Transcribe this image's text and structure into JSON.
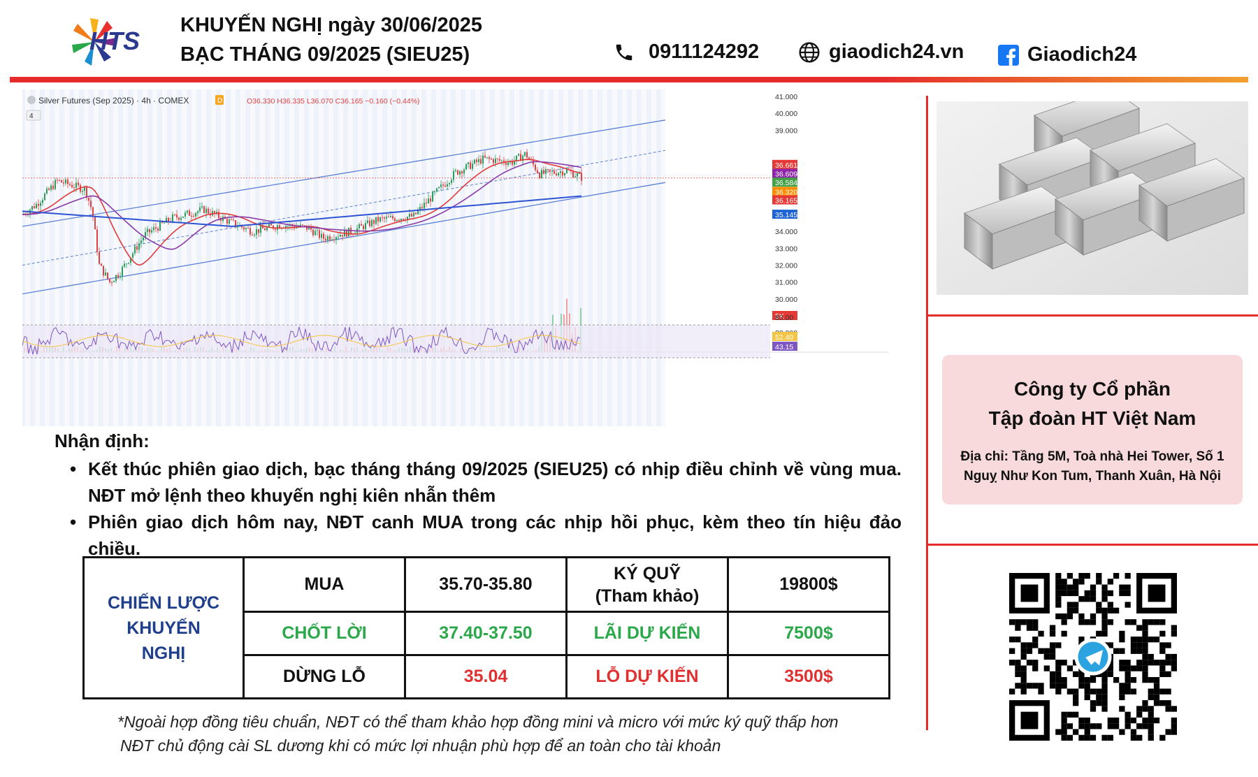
{
  "header": {
    "brand": "HTS",
    "title_line1": "KHUYẾN NGHỊ ngày 30/06/2025",
    "title_line2": "BẠC THÁNG 09/2025 (SIEU25)",
    "phone": "0911124292",
    "website": "giaodich24.vn",
    "facebook": "Giaodich24"
  },
  "chart": {
    "title": "Silver Futures (Sep 2025) · 4h · COMEX",
    "ohlc": "O36.330 H36.335 L36.070 C36.165 −0.160 (−0.44%)",
    "interval_badge": "4",
    "price_ticks": [
      "41.000",
      "40.000",
      "39.000",
      "36.661",
      "36.609",
      "36.584",
      "36.320",
      "36.165",
      "35.145",
      "34.000",
      "33.000",
      "32.000",
      "31.000",
      "30.000",
      "5K",
      "28.000"
    ],
    "rsi_ticks": [
      "80.00",
      "52.40",
      "43.15"
    ],
    "colors": {
      "red": "#e03a3a",
      "purple": "#8a3aa8",
      "blue": "#2f55d4",
      "channel": "#5b7fd6",
      "up": "#2a9d5a",
      "down": "#e04040"
    }
  },
  "analysis": {
    "title": "Nhận định:",
    "bullets": [
      "Kết thúc phiên giao dịch, bạc tháng tháng 09/2025 (SIEU25) có nhịp điều chỉnh về vùng mua. NĐT mở lệnh theo khuyến nghị kiên nhẫn thêm",
      "Phiên giao dịch hôm nay, NĐT canh MUA trong các nhịp hồi phục, kèm theo tín hiệu đảo chiều."
    ]
  },
  "strategy": {
    "label": "CHIẾN LƯỢC KHUYẾN NGHỊ",
    "rows": [
      {
        "action": "MUA",
        "price": "35.70-35.80",
        "metric": "KÝ QUỸ (Tham khảo)",
        "amount": "19800$"
      },
      {
        "action": "CHỐT LỜI",
        "price": "37.40-37.50",
        "metric": "LÃI DỰ KIẾN",
        "amount": "7500$"
      },
      {
        "action": "DỪNG LỖ",
        "price": "35.04",
        "metric": "LỖ DỰ KIẾN",
        "amount": "3500$"
      }
    ]
  },
  "notes": [
    "*Ngoài hợp đồng tiêu chuẩn, NĐT có thể tham khảo hợp đồng mini và micro với mức ký quỹ thấp hơn",
    "NĐT chủ động cài SL dương khi có mức lợi nhuận phù hợp để an toàn cho tài khoản"
  ],
  "company": {
    "name_line1": "Công ty Cổ phần",
    "name_line2": "Tập đoàn HT Việt Nam",
    "address_line1": "Địa chỉ: Tầng 5M, Toà nhà Hei Tower, Số 1",
    "address_line2": "Nguỵ Như Kon Tum, Thanh Xuân, Hà Nội"
  }
}
